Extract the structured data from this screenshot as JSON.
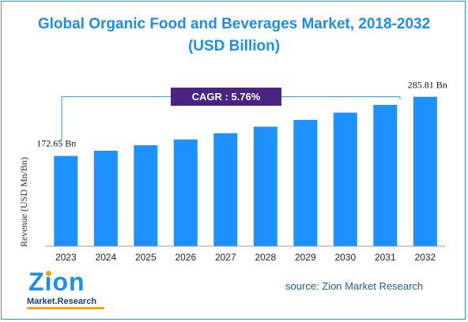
{
  "chart_data": {
    "type": "bar",
    "title": "Global Organic Food and Beverages Market, 2018-2032",
    "subtitle": "(USD Billion)",
    "ylabel": "Revenue (USD Mn/Bn)",
    "xlabel": "",
    "categories": [
      "2023",
      "2024",
      "2025",
      "2026",
      "2027",
      "2028",
      "2029",
      "2030",
      "2031",
      "2032"
    ],
    "values": [
      172.65,
      182.6,
      193.1,
      204.3,
      216.1,
      228.5,
      241.7,
      255.6,
      270.4,
      285.81
    ],
    "value_labels": [
      {
        "index": 0,
        "text": "172.65 Bn"
      },
      {
        "index": 9,
        "text": "285.81 Bn"
      }
    ],
    "ylim": [
      0,
      320
    ],
    "grid": false,
    "bar_color": "#1e90ff",
    "annotation": {
      "text": "CAGR : 5.76%",
      "background": "#4a2481",
      "color": "#ffffff"
    }
  },
  "source": "source: Zion Market Research",
  "logo": {
    "main": "Zion",
    "sub": "Market.Research"
  },
  "colors": {
    "title": "#1d8fe6",
    "axis": "#9a9a9a",
    "leader": "#2aa4d8",
    "border": "#2f93e8"
  }
}
